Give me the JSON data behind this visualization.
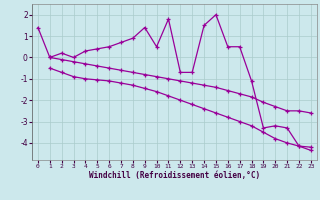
{
  "line1_x": [
    0,
    1,
    2,
    3,
    4,
    5,
    6,
    7,
    8,
    9,
    10,
    11,
    12,
    13,
    14,
    15,
    16,
    17,
    18,
    19,
    20,
    21,
    22,
    23
  ],
  "line1_y": [
    1.4,
    0.0,
    0.2,
    0.0,
    0.3,
    0.4,
    0.5,
    0.7,
    0.9,
    1.4,
    0.5,
    1.8,
    -0.7,
    -0.7,
    1.5,
    2.0,
    0.5,
    0.5,
    -1.1,
    -3.3,
    -3.2,
    -3.3,
    -4.15,
    -4.2
  ],
  "line2_x": [
    1,
    2,
    3,
    4,
    5,
    6,
    7,
    8,
    9,
    10,
    11,
    12,
    13,
    14,
    15,
    16,
    17,
    18,
    19,
    20,
    21,
    22,
    23
  ],
  "line2_y": [
    0.0,
    -0.1,
    -0.2,
    -0.3,
    -0.4,
    -0.5,
    -0.6,
    -0.7,
    -0.8,
    -0.9,
    -1.0,
    -1.1,
    -1.2,
    -1.3,
    -1.4,
    -1.55,
    -1.7,
    -1.85,
    -2.1,
    -2.3,
    -2.5,
    -2.5,
    -2.6
  ],
  "line3_x": [
    1,
    2,
    3,
    4,
    5,
    6,
    7,
    8,
    9,
    10,
    11,
    12,
    13,
    14,
    15,
    16,
    17,
    18,
    19,
    20,
    21,
    22,
    23
  ],
  "line3_y": [
    -0.5,
    -0.7,
    -0.9,
    -1.0,
    -1.05,
    -1.1,
    -1.2,
    -1.3,
    -1.45,
    -1.6,
    -1.8,
    -2.0,
    -2.2,
    -2.4,
    -2.6,
    -2.8,
    -3.0,
    -3.2,
    -3.5,
    -3.8,
    -4.0,
    -4.15,
    -4.35
  ],
  "color": "#990099",
  "bg_color": "#cce8ec",
  "grid_color": "#aacccc",
  "xlabel": "Windchill (Refroidissement éolien,°C)",
  "ylim": [
    -4.8,
    2.5
  ],
  "xlim": [
    -0.5,
    23.5
  ],
  "yticks": [
    -4,
    -3,
    -2,
    -1,
    0,
    1,
    2
  ],
  "xticks": [
    0,
    1,
    2,
    3,
    4,
    5,
    6,
    7,
    8,
    9,
    10,
    11,
    12,
    13,
    14,
    15,
    16,
    17,
    18,
    19,
    20,
    21,
    22,
    23
  ]
}
